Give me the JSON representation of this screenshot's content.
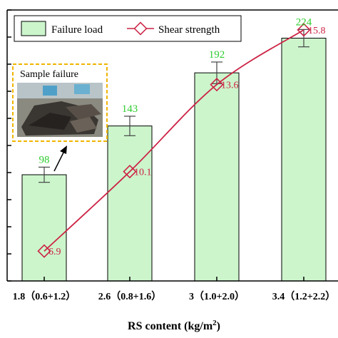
{
  "chart_data": {
    "type": "bar",
    "categories": [
      "1.8（0.6+1.2）",
      "2.6（0.8+1.6）",
      "3（1.0+2.0）",
      "3.4（1.2+2.2）"
    ],
    "xlabel": "RS content (kg/m",
    "xlabel_sup": "2",
    "xlabel_end": ")",
    "ylabel": "",
    "ylim": [
      0,
      250
    ],
    "series": [
      {
        "name": "Failure load",
        "values": [
          98,
          143,
          192,
          224
        ],
        "errors": [
          7,
          9,
          10,
          8
        ],
        "value_labels": [
          "98",
          "143",
          "192",
          "224"
        ],
        "color": "#ccf5cc",
        "label_color": "#2ecc2e"
      },
      {
        "name": "Shear strength",
        "type": "line",
        "values": [
          6.9,
          10.1,
          13.6,
          15.8
        ],
        "value_labels": [
          "6.9",
          "10.1",
          "13.6",
          "15.8"
        ],
        "ylim": [
          5.7,
          16.6
        ],
        "color": "#cc2244"
      }
    ],
    "legend": "top",
    "grid": false,
    "inset_label": "Sample failure"
  }
}
